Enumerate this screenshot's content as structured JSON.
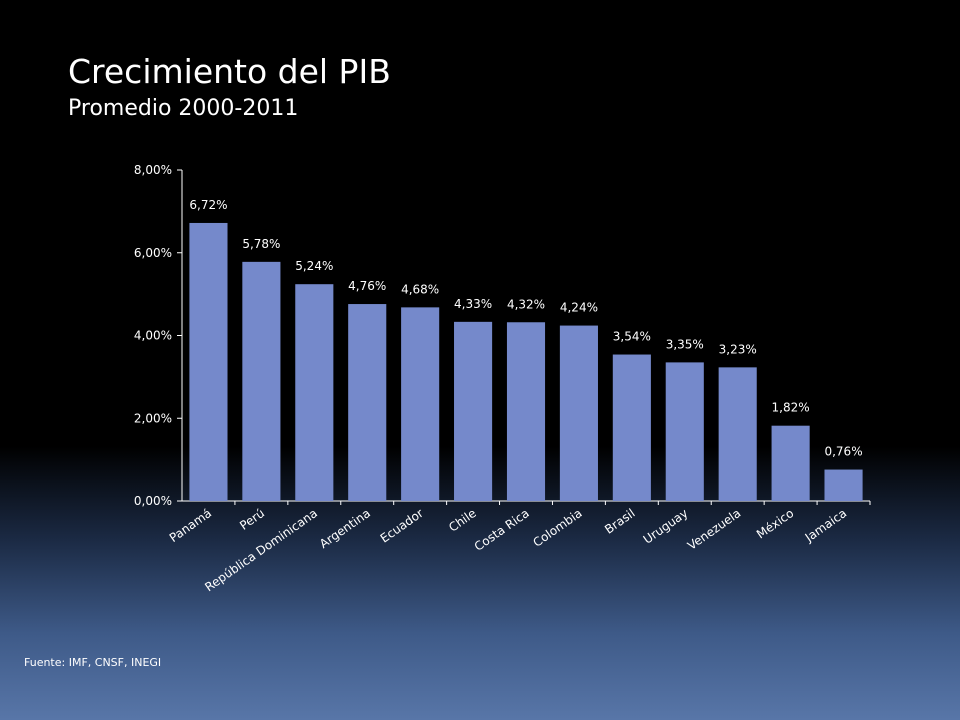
{
  "slide": {
    "title": "Crecimiento del PIB",
    "subtitle": "Promedio 2000-2011",
    "source": "Fuente: IMF, CNSF, INEGI"
  },
  "chart_data": {
    "type": "bar",
    "title": "",
    "xlabel": "",
    "ylabel": "",
    "categories": [
      "Panamá",
      "Perú",
      "República Dominicana",
      "Argentina",
      "Ecuador",
      "Chile",
      "Costa Rica",
      "Colombia",
      "Brasil",
      "Uruguay",
      "Venezuela",
      "México",
      "Jamaica"
    ],
    "values": [
      6.72,
      5.78,
      5.24,
      4.76,
      4.68,
      4.33,
      4.32,
      4.24,
      3.54,
      3.35,
      3.23,
      1.82,
      0.76
    ],
    "value_labels": [
      "6,72%",
      "5,78%",
      "5,24%",
      "4,76%",
      "4,68%",
      "4,33%",
      "4,32%",
      "4,24%",
      "3,54%",
      "3,35%",
      "3,23%",
      "1,82%",
      "0,76%"
    ],
    "ylim": [
      0,
      8
    ],
    "yticks": [
      0,
      2,
      4,
      6,
      8
    ],
    "ytick_labels": [
      "0,00%",
      "2,00%",
      "4,00%",
      "6,00%",
      "8,00%"
    ],
    "bar_color": "#7589cb",
    "axis_color": "#ffffff",
    "grid": false,
    "legend": "none"
  }
}
